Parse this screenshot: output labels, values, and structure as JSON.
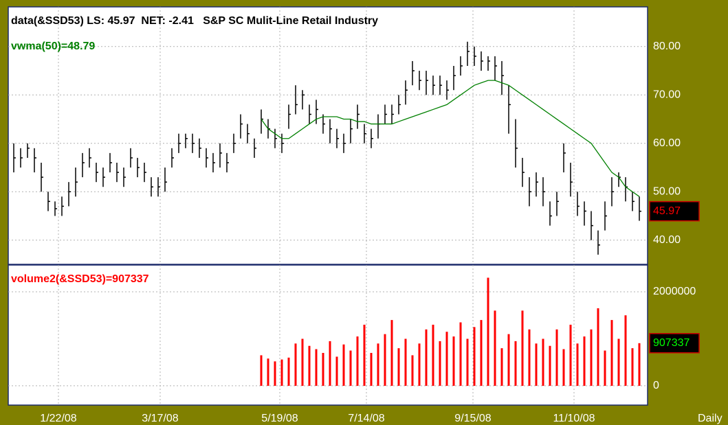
{
  "chart_data": [
    {
      "type": "ohlc",
      "title": "data(&SSD53) LS: 45.97  NET: -2.41   S&P SC Mulit-Line Retail Industry",
      "color": "#000000",
      "xlim": [
        -0.8,
        92.2
      ],
      "xticks": [
        {
          "value": 6.5,
          "label": "1/22/08"
        },
        {
          "value": 21.3,
          "label": "3/17/08"
        },
        {
          "value": 38.7,
          "label": "5/19/08"
        },
        {
          "value": 51.3,
          "label": "7/14/08"
        },
        {
          "value": 66.8,
          "label": "9/15/08"
        },
        {
          "value": 81.5,
          "label": "11/10/08"
        }
      ],
      "frequency_label": "Daily",
      "ylim": [
        35,
        88.2
      ],
      "yticks": [
        {
          "value": 40,
          "label": "40.00"
        },
        {
          "value": 50,
          "label": "50.00"
        },
        {
          "value": 60,
          "label": "60.00"
        },
        {
          "value": 70,
          "label": "70.00"
        },
        {
          "value": 80,
          "label": "80.00"
        }
      ],
      "grid": true,
      "high": [
        60,
        59,
        60,
        59,
        56,
        50,
        48,
        49,
        52,
        55,
        58,
        59,
        56,
        55,
        58,
        56,
        55,
        59,
        57,
        56,
        53,
        53,
        55,
        59,
        62,
        62,
        62,
        61,
        59,
        58,
        60,
        58,
        62,
        66,
        64,
        61,
        67,
        65,
        63,
        62,
        68,
        72,
        71,
        68,
        69,
        66,
        65,
        63,
        62,
        65,
        68,
        64,
        63,
        66,
        68,
        68,
        70,
        73,
        77,
        75,
        75,
        74,
        74,
        73,
        76,
        78,
        81,
        80,
        79,
        78,
        78,
        77,
        72,
        65,
        57,
        53,
        54,
        53,
        48,
        50,
        60,
        56,
        50,
        48,
        46,
        42,
        48,
        53,
        54,
        53,
        50,
        49
      ],
      "low": [
        54,
        55,
        57,
        54,
        50,
        46,
        45,
        45,
        47,
        49,
        53,
        55,
        52,
        51,
        54,
        52,
        51,
        55,
        53,
        52,
        49,
        49,
        50,
        55,
        58,
        59,
        58,
        57,
        55,
        54,
        55,
        54,
        58,
        61,
        60,
        57,
        62,
        61,
        59,
        58,
        63,
        66,
        67,
        64,
        64,
        62,
        60,
        59,
        58,
        60,
        63,
        60,
        59,
        61,
        64,
        64,
        66,
        68,
        72,
        71,
        70,
        70,
        70,
        69,
        71,
        74,
        76,
        76,
        75,
        75,
        73,
        70,
        62,
        55,
        51,
        47,
        49,
        47,
        43,
        45,
        54,
        49,
        45,
        43,
        40,
        37,
        42,
        47,
        51,
        48,
        46,
        44
      ],
      "close": [
        57,
        57,
        59,
        57,
        53,
        48,
        46.5,
        47,
        50,
        52,
        56,
        57,
        54,
        53,
        56,
        54,
        53,
        57,
        55,
        54,
        51,
        51,
        52,
        57,
        60,
        61,
        60,
        59,
        57,
        56,
        58,
        56,
        60,
        64,
        62,
        59,
        65,
        63,
        61,
        60,
        66,
        68,
        70,
        66,
        67,
        64,
        63,
        61,
        60,
        63,
        66,
        62,
        61,
        64,
        66,
        66,
        68,
        71,
        75,
        73,
        73,
        72,
        72,
        71,
        74,
        76,
        79,
        78,
        77,
        77,
        76,
        74,
        68,
        59,
        54,
        50,
        52,
        50,
        45,
        48,
        58,
        52,
        47,
        46,
        43,
        39,
        45,
        50,
        53,
        51,
        48,
        45.97
      ],
      "overlay": {
        "name": "vwma(50)=48.79",
        "color": "#008000",
        "values": [
          null,
          null,
          null,
          null,
          null,
          null,
          null,
          null,
          null,
          null,
          null,
          null,
          null,
          null,
          null,
          null,
          null,
          null,
          null,
          null,
          null,
          null,
          null,
          null,
          null,
          null,
          null,
          null,
          null,
          null,
          null,
          null,
          null,
          null,
          null,
          null,
          65,
          63,
          62,
          61,
          61,
          62,
          63,
          64,
          65,
          65.5,
          65.5,
          65.5,
          65,
          65,
          64.5,
          64.5,
          64,
          64,
          64,
          64,
          64.5,
          65,
          65.5,
          66,
          66.5,
          67,
          67.5,
          68,
          69,
          70,
          71,
          72,
          72.5,
          73,
          73,
          72.5,
          72,
          71,
          70,
          69,
          68,
          67,
          66,
          65,
          64,
          63,
          62,
          61,
          60,
          58,
          56,
          54,
          53,
          51,
          50,
          49
        ]
      },
      "last_value": 45.97,
      "last_color": "#ff0000"
    },
    {
      "type": "bar",
      "name": "volume2(&SSD53)=907337",
      "color": "#ff0000",
      "ylim": [
        -410000,
        2570000
      ],
      "yticks": [
        0,
        2000000
      ],
      "grid": true,
      "values": [
        null,
        null,
        null,
        null,
        null,
        null,
        null,
        null,
        null,
        null,
        null,
        null,
        null,
        null,
        null,
        null,
        null,
        null,
        null,
        null,
        null,
        null,
        null,
        null,
        null,
        null,
        null,
        null,
        null,
        null,
        null,
        null,
        null,
        null,
        null,
        null,
        650000,
        580000,
        520000,
        560000,
        600000,
        900000,
        1000000,
        850000,
        780000,
        700000,
        950000,
        620000,
        880000,
        750000,
        1050000,
        1300000,
        700000,
        900000,
        1100000,
        1400000,
        800000,
        1000000,
        650000,
        900000,
        1200000,
        1300000,
        950000,
        1150000,
        1050000,
        1350000,
        1000000,
        1250000,
        1400000,
        2300000,
        1600000,
        800000,
        1100000,
        950000,
        1600000,
        1200000,
        900000,
        1000000,
        850000,
        1200000,
        780000,
        1300000,
        900000,
        1050000,
        1200000,
        1650000,
        750000,
        1400000,
        1000000,
        1500000,
        800000,
        907337
      ],
      "last_value": 907337,
      "last_color": "#00ff00"
    }
  ]
}
